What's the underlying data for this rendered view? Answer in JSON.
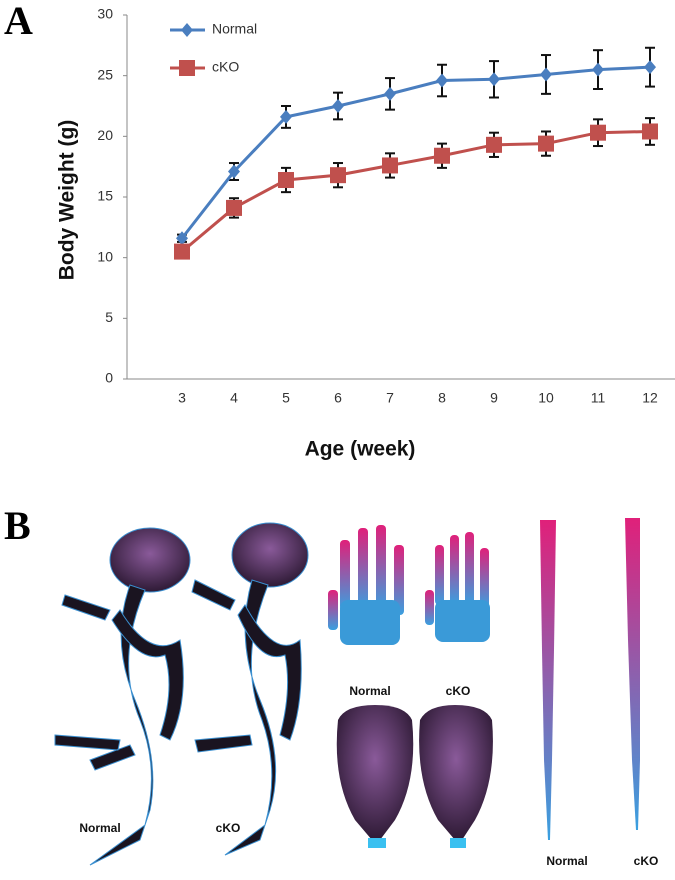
{
  "panels": [
    "A",
    "B"
  ],
  "chart_data": {
    "type": "line",
    "ylabel": "Body Weight (g)",
    "xlabel": "Age (week)",
    "categories": [
      "3",
      "4",
      "5",
      "6",
      "7",
      "8",
      "9",
      "10",
      "11",
      "12"
    ],
    "series": [
      {
        "name": "Normal",
        "color": "#4a7ebf",
        "marker": "diamond",
        "values": [
          11.6,
          17.1,
          21.6,
          22.5,
          23.5,
          24.6,
          24.7,
          25.1,
          25.5,
          25.7
        ],
        "errors": [
          0.3,
          0.7,
          0.9,
          1.1,
          1.3,
          1.3,
          1.5,
          1.6,
          1.6,
          1.6
        ]
      },
      {
        "name": "cKO",
        "color": "#c0504d",
        "marker": "square",
        "values": [
          10.5,
          14.1,
          16.4,
          16.8,
          17.6,
          18.4,
          19.3,
          19.4,
          20.3,
          20.4
        ],
        "errors": [
          0.3,
          0.8,
          1.0,
          1.0,
          1.0,
          1.0,
          1.0,
          1.0,
          1.1,
          1.1
        ]
      }
    ],
    "ylim": [
      0,
      30
    ],
    "yticks": [
      0,
      5,
      10,
      15,
      20,
      25,
      30
    ],
    "legend": "upper-left"
  },
  "panel_b": {
    "skeleton_labels": [
      "Normal",
      "cKO"
    ],
    "paw_labels": [
      "Normal",
      "cKO"
    ],
    "tail_labels": [
      "Normal",
      "cKO"
    ]
  }
}
